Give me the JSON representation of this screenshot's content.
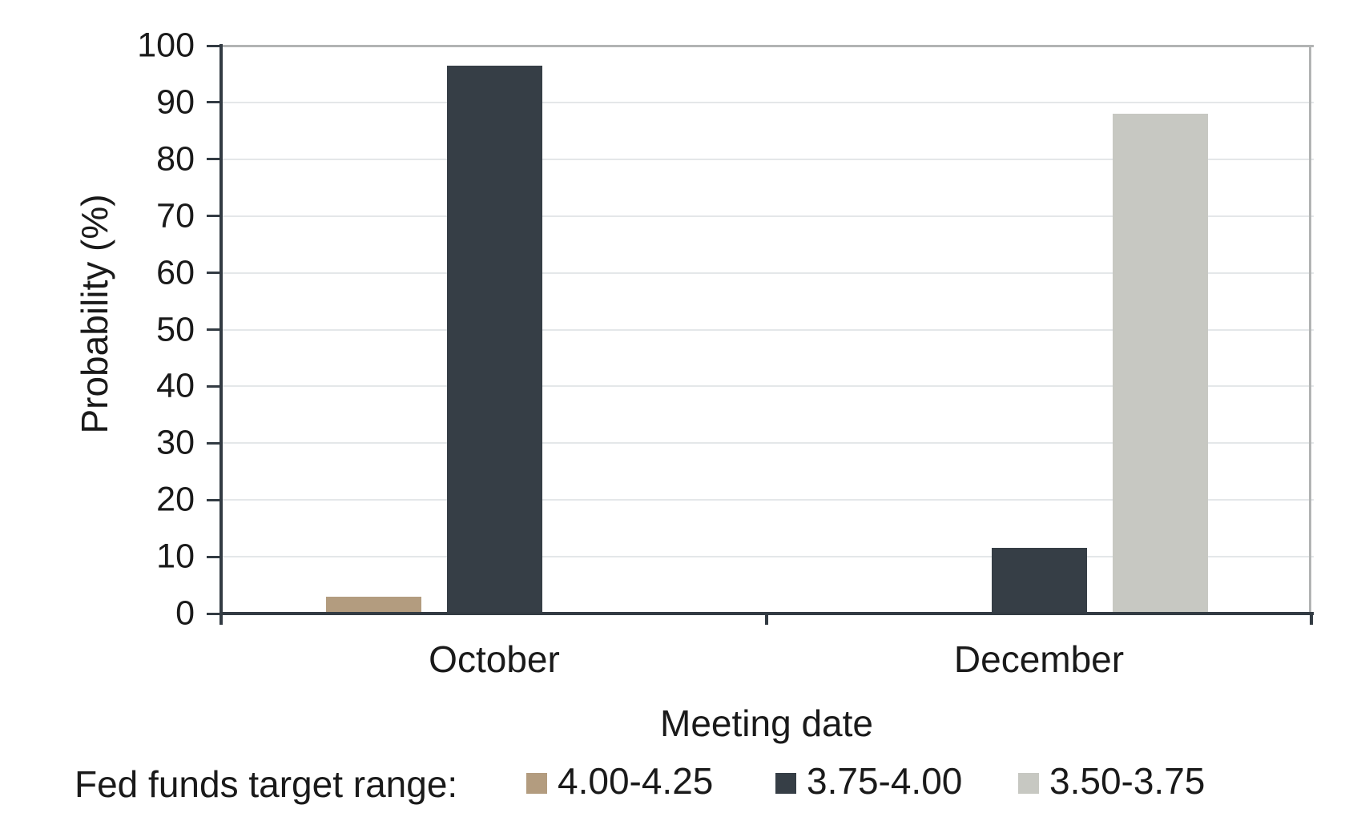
{
  "chart_data": {
    "type": "bar",
    "title": "",
    "xlabel": "Meeting date",
    "ylabel": "Probability (%)",
    "ylim": [
      0,
      100
    ],
    "ytick_step": 10,
    "yticks": [
      0,
      10,
      20,
      30,
      40,
      50,
      60,
      70,
      80,
      90,
      100
    ],
    "grid": "horizontal",
    "legend_position": "bottom",
    "legend_title": "Fed funds target range:",
    "categories": [
      "October",
      "December"
    ],
    "series": [
      {
        "name": "4.00-4.25",
        "color": "#b39c7f",
        "values": [
          3,
          0
        ]
      },
      {
        "name": "3.75-4.00",
        "color": "#363e46",
        "values": [
          96.5,
          11.5
        ]
      },
      {
        "name": "3.50-3.75",
        "color": "#c7c8c2",
        "values": [
          0,
          88
        ]
      }
    ]
  },
  "colors": {
    "text": "#1a1a1a",
    "axis": "#333b43",
    "gridline": "#e4e7e9",
    "plot_border": "#b2b4b4",
    "background": "#ffffff"
  }
}
